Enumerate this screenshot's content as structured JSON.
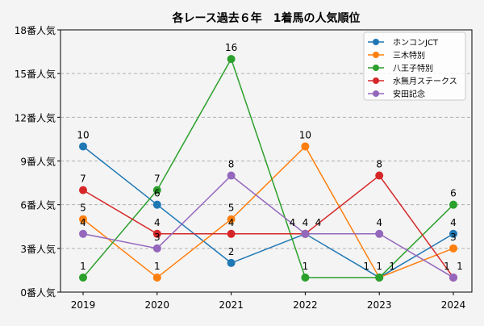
{
  "chart_data": {
    "type": "line",
    "title": "各レース過去６年　1着馬の人気順位",
    "x": [
      "2019",
      "2020",
      "2021",
      "2022",
      "2023",
      "2024"
    ],
    "ylim": [
      0,
      18
    ],
    "yticks": [
      0,
      3,
      6,
      9,
      12,
      15,
      18
    ],
    "ytick_labels": [
      "0番人気",
      "3番人気",
      "6番人気",
      "9番人気",
      "12番人気",
      "15番人気",
      "18番人気"
    ],
    "grid": "horizontal dashed",
    "legend": "top-right",
    "series": [
      {
        "name": "ホンコンJCT",
        "color": "#1f77b4",
        "values": [
          10,
          6,
          2,
          4,
          1,
          4
        ]
      },
      {
        "name": "三木特別",
        "color": "#ff7f0e",
        "values": [
          5,
          1,
          5,
          10,
          1,
          3
        ]
      },
      {
        "name": "八王子特別",
        "color": "#2ca02c",
        "values": [
          1,
          7,
          16,
          1,
          1,
          6
        ]
      },
      {
        "name": "水無月ステークス",
        "color": "#d62728",
        "values": [
          7,
          4,
          4,
          4,
          8,
          1
        ]
      },
      {
        "name": "安田記念",
        "color": "#9467bd",
        "values": [
          4,
          3,
          8,
          4,
          4,
          1
        ]
      }
    ]
  }
}
